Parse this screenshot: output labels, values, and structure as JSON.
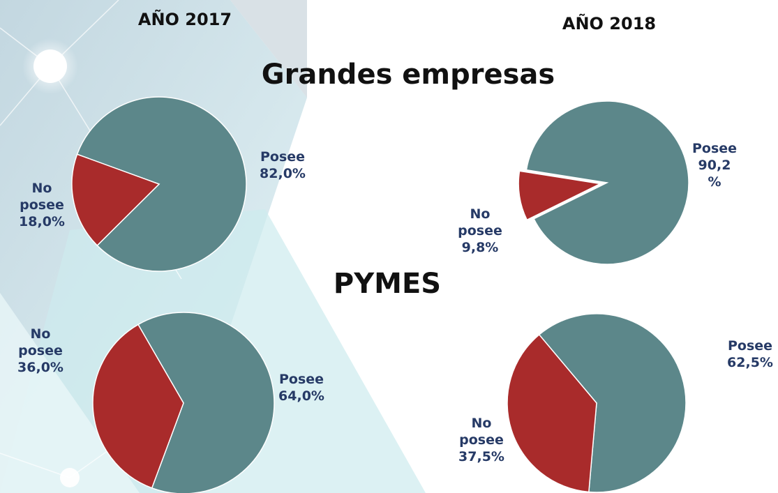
{
  "slide": {
    "years": [
      "AÑO 2017",
      "AÑO 2018"
    ],
    "sections": [
      "Grandes empresas",
      "PYMES"
    ]
  },
  "chart_data": [
    {
      "type": "pie",
      "categories": [
        "Posee",
        "No posee"
      ],
      "values": [
        82.0,
        18.0
      ],
      "value_labels": [
        "82,0%",
        "18,0%"
      ],
      "colors": [
        "#5c878a",
        "#a92b2b"
      ]
    },
    {
      "type": "pie",
      "categories": [
        "Posee",
        "No posee"
      ],
      "values": [
        90.2,
        9.8
      ],
      "value_labels": [
        "90,2 %",
        "9,8%"
      ],
      "colors": [
        "#5c878a",
        "#a92b2b"
      ]
    },
    {
      "type": "pie",
      "categories": [
        "Posee",
        "No posee"
      ],
      "values": [
        64.0,
        36.0
      ],
      "value_labels": [
        "64,0%",
        "36,0%"
      ],
      "colors": [
        "#5c878a",
        "#a92b2b"
      ]
    },
    {
      "type": "pie",
      "categories": [
        "Posee",
        "No posee"
      ],
      "values": [
        62.5,
        37.5
      ],
      "value_labels": [
        "62,5%",
        "37,5%"
      ],
      "colors": [
        "#5c878a",
        "#a92b2b"
      ]
    }
  ]
}
